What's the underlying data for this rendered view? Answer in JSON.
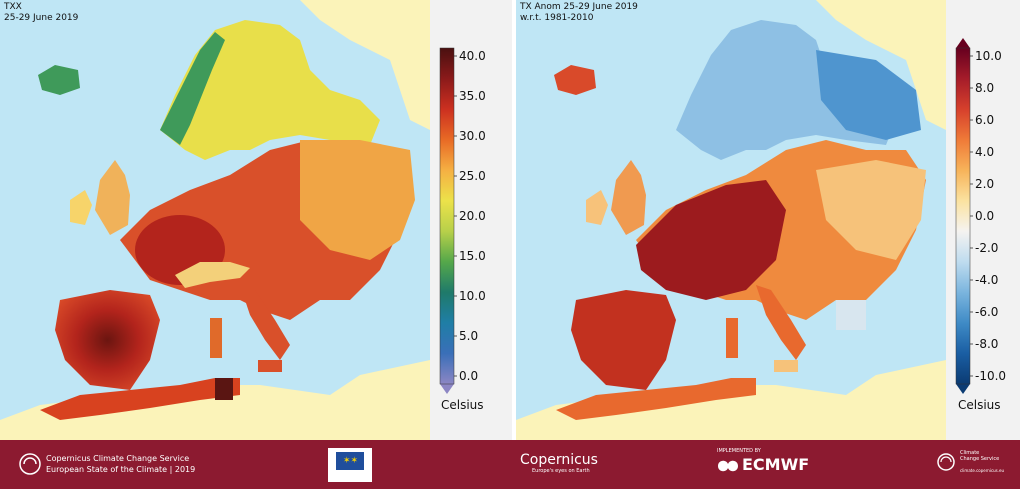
{
  "left_map": {
    "title_line1": "TXX",
    "title_line2": "25-29 June 2019",
    "colorbar": {
      "ticks": [
        "40.0",
        "35.0",
        "30.0",
        "25.0",
        "20.0",
        "15.0",
        "10.0",
        "5.0",
        "0.0"
      ],
      "unit": "Celsius",
      "colors": [
        "#4a1010",
        "#8b1a1a",
        "#cc3020",
        "#e86a25",
        "#f5b043",
        "#ece24a",
        "#b8d04a",
        "#55a84a",
        "#1f7a6a",
        "#1f7ea6",
        "#3a6fb8",
        "#8c86c4"
      ]
    }
  },
  "right_map": {
    "title_line1": "TX Anom 25-29 June 2019",
    "title_line2": "w.r.t. 1981-2010",
    "colorbar": {
      "ticks": [
        "10.0",
        "8.0",
        "6.0",
        "4.0",
        "2.0",
        "0.0",
        "-2.0",
        "-4.0",
        "-6.0",
        "-8.0",
        "-10.0"
      ],
      "unit": "Celsius",
      "colors": [
        "#67001f",
        "#a51c2a",
        "#d6402c",
        "#ef7a38",
        "#f7b35a",
        "#fbe2a0",
        "#f5f3f0",
        "#bfdcef",
        "#7bb5de",
        "#3f8bc6",
        "#1a5ea3",
        "#0b3b73"
      ]
    }
  },
  "footer": {
    "copernicus_service_line1": "Copernicus Climate Change Service",
    "copernicus_service_line2": "European State of the Climate | 2019",
    "copernicus_logo_text": "Copernicus",
    "copernicus_logo_sub": "Europe's eyes on Earth",
    "implemented_by": "IMPLEMENTED BY",
    "ecmwf": "ECMWF",
    "c3s_line1": "Climate",
    "c3s_line2": "Change Service",
    "c3s_line3": "climate.copernicus.eu"
  },
  "colors": {
    "sea": "#bfe6f5",
    "land_outside": "#fbf3b9",
    "footer_bg": "#8c1a30"
  }
}
